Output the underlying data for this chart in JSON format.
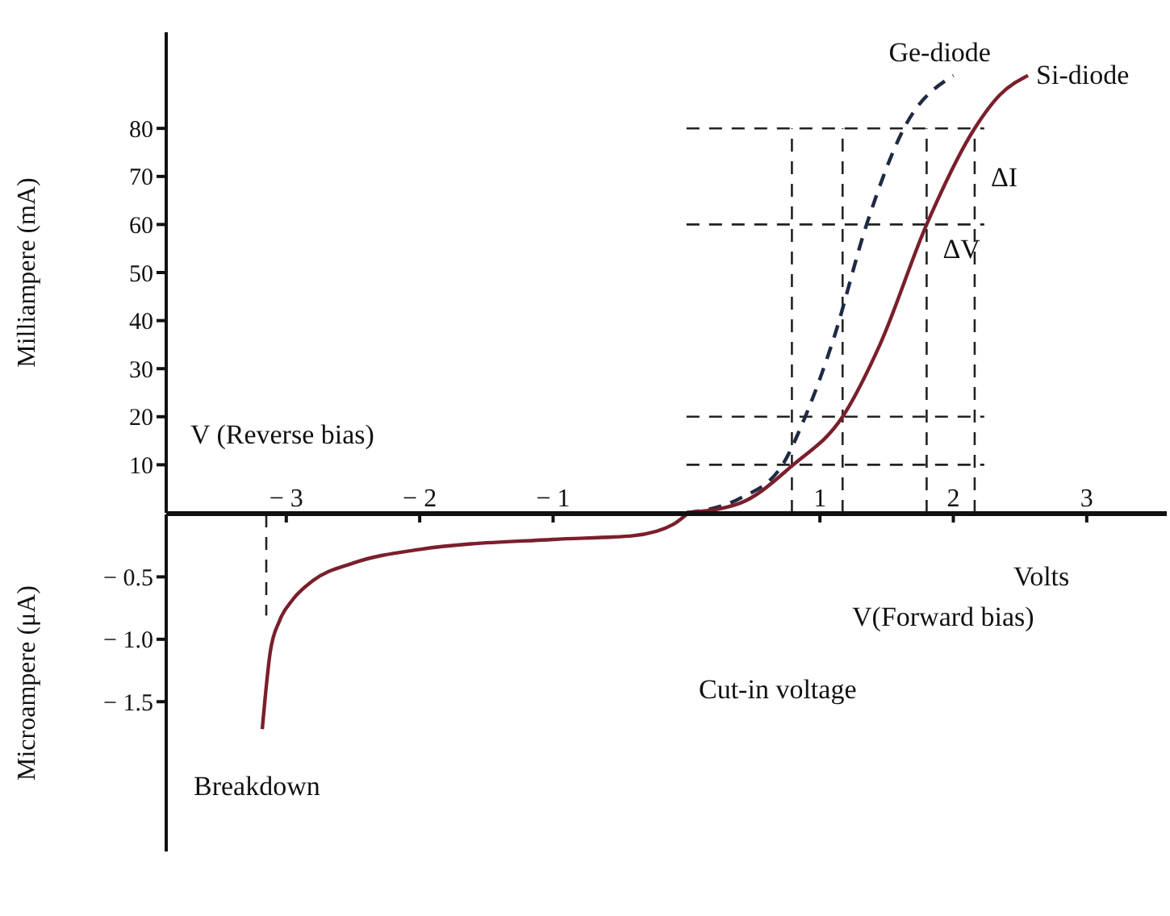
{
  "chart_data": [
    {
      "type": "line",
      "ylabel": "Milliampere (mA)",
      "xlabel": "V (Reverse bias)",
      "xlim": [
        -3.9,
        3.6
      ],
      "xticks": [
        -3,
        -2,
        -1,
        1,
        2,
        3
      ],
      "ylim": [
        0,
        100
      ],
      "yticks": [
        10,
        20,
        30,
        40,
        50,
        60,
        70,
        80
      ],
      "series": [
        {
          "name": "Ge-diode",
          "color": "#1f2a44",
          "line_style": "dashed",
          "x": [
            0,
            0.4,
            0.72,
            0.89,
            1.1,
            1.35,
            1.63,
            2.0
          ],
          "values": [
            0,
            3,
            10,
            20,
            36,
            60,
            80,
            91
          ]
        },
        {
          "name": "Si-diode",
          "color": "#7a1f2b",
          "line_style": "solid",
          "x": [
            0,
            0.4,
            0.8,
            1.17,
            1.45,
            1.8,
            2.16,
            2.35,
            2.56
          ],
          "values": [
            0,
            2,
            10,
            20,
            35,
            60,
            80,
            87,
            91
          ]
        }
      ],
      "ref_lines": [
        {
          "axis": "y",
          "value": 80,
          "line_style": "dashed"
        },
        {
          "axis": "y",
          "value": 60,
          "line_style": "dashed"
        },
        {
          "axis": "y",
          "value": 20,
          "line_style": "dashed"
        },
        {
          "axis": "y",
          "value": 10,
          "line_style": "dashed"
        },
        {
          "axis": "x",
          "value": 0.79,
          "line_style": "dashed"
        },
        {
          "axis": "x",
          "value": 1.17,
          "line_style": "dashed"
        },
        {
          "axis": "x",
          "value": 1.8,
          "line_style": "dashed"
        },
        {
          "axis": "x",
          "value": 2.16,
          "line_style": "dashed"
        }
      ],
      "annotations": [
        {
          "text": "ΔI",
          "x": 2.16,
          "y": 70
        },
        {
          "text": "ΔV",
          "x": 1.8,
          "y": 55
        }
      ],
      "marker": "none",
      "grid": false,
      "legend": false
    },
    {
      "type": "line",
      "ylabel": "Microampere (μA)",
      "xlabel": "Volts",
      "xlim": [
        -3.9,
        3.6
      ],
      "xticks": [
        -3,
        -2,
        -1,
        1,
        2,
        3
      ],
      "ylim": [
        -2.7,
        0
      ],
      "yticks": [
        -0.5,
        {
          "value": -1,
          "label": "− 1.0"
        },
        -1.5
      ],
      "tick_labels": "y",
      "series": [
        {
          "color": "#7a1f2b",
          "line_style": "solid",
          "x": [
            -3.18,
            -3.12,
            -3.05,
            -2.95,
            -2.8,
            -2.5,
            -2.0,
            -1.0,
            -0.4,
            -0.1,
            0
          ],
          "values": [
            -1.72,
            -1.1,
            -0.85,
            -0.68,
            -0.53,
            -0.39,
            -0.28,
            -0.2,
            -0.17,
            -0.08,
            0
          ]
        }
      ],
      "ref_lines": [
        {
          "axis": "x",
          "value": -3.15,
          "line_style": "dashed"
        }
      ],
      "annotations": [
        "V(Forward bias)",
        "Cut-in voltage",
        "Breakdown"
      ],
      "marker": "none",
      "grid": false,
      "legend": false
    }
  ]
}
